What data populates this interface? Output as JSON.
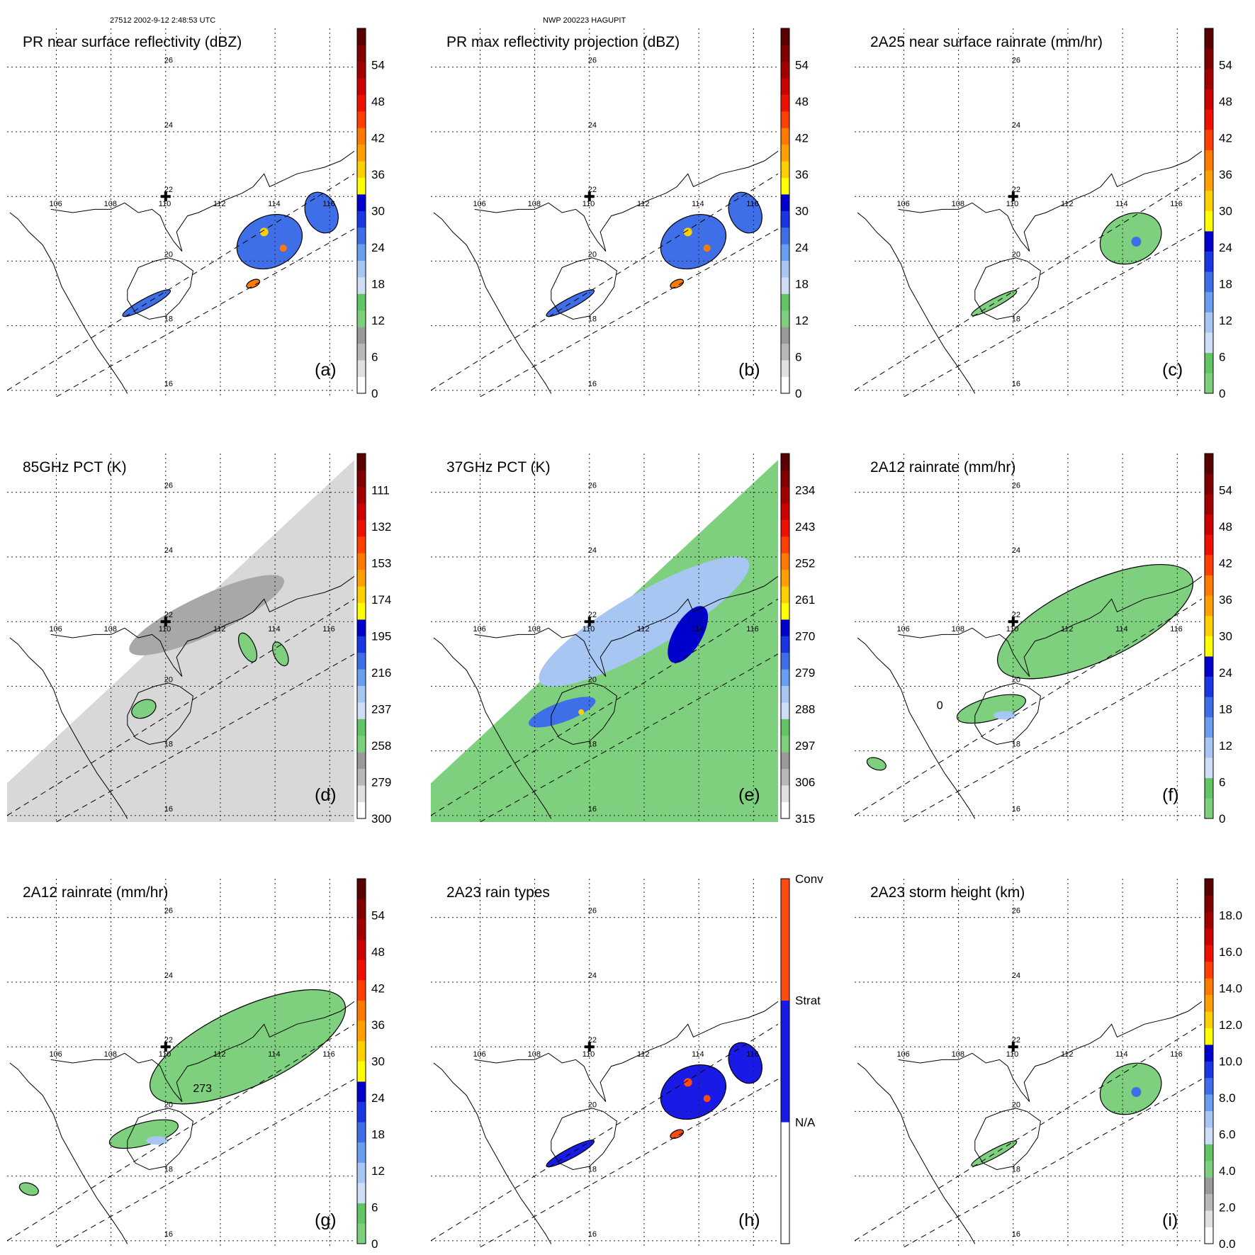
{
  "header": {
    "orbit_info": "27512 2002-9-12 2:48:53 UTC",
    "storm_info": "NWP 200223 HAGUPIT"
  },
  "map": {
    "lat_labels": [
      "26",
      "24",
      "22",
      "20",
      "18",
      "16"
    ],
    "lon_labels": [
      "106",
      "108",
      "110",
      "112",
      "114",
      "116"
    ]
  },
  "panels": [
    {
      "id": "a",
      "title": "PR near surface reflectivity (dBZ)",
      "letter": "(a)",
      "colorbar": [
        "0",
        "6",
        "12",
        "18",
        "24",
        "30",
        "36",
        "42",
        "48",
        "54"
      ],
      "colors": [
        "#ffffff",
        "#e0e0e0",
        "#b8b8b8",
        "#9a9a9a",
        "#7ed07e",
        "#62c462",
        "#cfdcf6",
        "#a8c6f2",
        "#6a9ff0",
        "#3f6fe8",
        "#1a36e2",
        "#0000cc",
        "#ffff00",
        "#ffd000",
        "#ffa000",
        "#ff7a00",
        "#ff4000",
        "#ee1000",
        "#cc0000",
        "#a00000",
        "#800000",
        "#5a0000"
      ]
    },
    {
      "id": "b",
      "title": "PR max reflectivity projection (dBZ)",
      "letter": "(b)",
      "colorbar": [
        "0",
        "6",
        "12",
        "18",
        "24",
        "30",
        "36",
        "42",
        "48",
        "54"
      ],
      "colors": [
        "#ffffff",
        "#e0e0e0",
        "#b8b8b8",
        "#9a9a9a",
        "#7ed07e",
        "#62c462",
        "#cfdcf6",
        "#a8c6f2",
        "#6a9ff0",
        "#3f6fe8",
        "#1a36e2",
        "#0000cc",
        "#ffff00",
        "#ffd000",
        "#ffa000",
        "#ff7a00",
        "#ff4000",
        "#ee1000",
        "#cc0000",
        "#a00000",
        "#800000",
        "#5a0000"
      ]
    },
    {
      "id": "c",
      "title": "2A25 near surface rainrate (mm/hr)",
      "letter": "(c)",
      "colorbar": [
        "0",
        "6",
        "12",
        "18",
        "24",
        "30",
        "36",
        "42",
        "48",
        "54"
      ],
      "colors": [
        "#7ed07e",
        "#62c462",
        "#cfdcf6",
        "#a8c6f2",
        "#6a9ff0",
        "#3f6fe8",
        "#1a36e2",
        "#0000cc",
        "#ffff00",
        "#ffd000",
        "#ffa000",
        "#ff7a00",
        "#ff4000",
        "#ee1000",
        "#cc0000",
        "#a00000",
        "#800000",
        "#5a0000"
      ]
    },
    {
      "id": "d",
      "title": "85GHz PCT (K)",
      "letter": "(d)",
      "colorbar": [
        "300",
        "279",
        "258",
        "237",
        "216",
        "195",
        "174",
        "153",
        "132",
        "111"
      ],
      "colors": [
        "#ffffff",
        "#e0e0e0",
        "#b8b8b8",
        "#9a9a9a",
        "#7ed07e",
        "#62c462",
        "#cfdcf6",
        "#a8c6f2",
        "#6a9ff0",
        "#3f6fe8",
        "#1a36e2",
        "#0000cc",
        "#ffff00",
        "#ffd000",
        "#ffa000",
        "#ff7a00",
        "#ff4000",
        "#ee1000",
        "#cc0000",
        "#a00000",
        "#800000",
        "#5a0000"
      ]
    },
    {
      "id": "e",
      "title": "37GHz PCT (K)",
      "letter": "(e)",
      "colorbar": [
        "315",
        "306",
        "297",
        "288",
        "279",
        "270",
        "261",
        "252",
        "243",
        "234"
      ],
      "colors": [
        "#ffffff",
        "#e0e0e0",
        "#b8b8b8",
        "#9a9a9a",
        "#7ed07e",
        "#62c462",
        "#cfdcf6",
        "#a8c6f2",
        "#6a9ff0",
        "#3f6fe8",
        "#1a36e2",
        "#0000cc",
        "#ffff00",
        "#ffd000",
        "#ffa000",
        "#ff7a00",
        "#ff4000",
        "#ee1000",
        "#cc0000",
        "#a00000",
        "#800000",
        "#5a0000"
      ]
    },
    {
      "id": "f",
      "title": "2A12 rainrate (mm/hr)",
      "letter": "(f)",
      "colorbar": [
        "0",
        "6",
        "12",
        "18",
        "24",
        "30",
        "36",
        "42",
        "48",
        "54"
      ],
      "colors": [
        "#7ed07e",
        "#62c462",
        "#cfdcf6",
        "#a8c6f2",
        "#6a9ff0",
        "#3f6fe8",
        "#1a36e2",
        "#0000cc",
        "#ffff00",
        "#ffd000",
        "#ffa000",
        "#ff7a00",
        "#ff4000",
        "#ee1000",
        "#cc0000",
        "#a00000",
        "#800000",
        "#5a0000"
      ]
    },
    {
      "id": "g",
      "title": "2A12 rainrate (mm/hr)",
      "letter": "(g)",
      "colorbar": [
        "0",
        "6",
        "12",
        "18",
        "24",
        "30",
        "36",
        "42",
        "48",
        "54"
      ],
      "colors": [
        "#7ed07e",
        "#62c462",
        "#cfdcf6",
        "#a8c6f2",
        "#6a9ff0",
        "#3f6fe8",
        "#1a36e2",
        "#0000cc",
        "#ffff00",
        "#ffd000",
        "#ffa000",
        "#ff7a00",
        "#ff4000",
        "#ee1000",
        "#cc0000",
        "#a00000",
        "#800000",
        "#5a0000"
      ]
    },
    {
      "id": "h",
      "title": "2A23 rain types",
      "letter": "(h)",
      "colorbar": [
        "N/A",
        "Strat",
        "Conv"
      ],
      "colors": [
        "#ffffff",
        "#1a1ae6",
        "#ff4a10"
      ]
    },
    {
      "id": "i",
      "title": "2A23 storm height (km)",
      "letter": "(i)",
      "colorbar": [
        "0.0",
        "2.0",
        "4.0",
        "6.0",
        "8.0",
        "10.0",
        "12.0",
        "14.0",
        "16.0",
        "18.0"
      ],
      "colors": [
        "#ffffff",
        "#e0e0e0",
        "#b8b8b8",
        "#9a9a9a",
        "#7ed07e",
        "#62c462",
        "#cfdcf6",
        "#a8c6f2",
        "#6a9ff0",
        "#3f6fe8",
        "#1a36e2",
        "#0000cc",
        "#ffff00",
        "#ffd000",
        "#ffa000",
        "#ff7a00",
        "#ff4000",
        "#ee1000",
        "#cc0000",
        "#a00000",
        "#800000",
        "#5a0000"
      ]
    }
  ],
  "annotations": {
    "f_contour_label": "0",
    "g_contour_label": "273"
  }
}
